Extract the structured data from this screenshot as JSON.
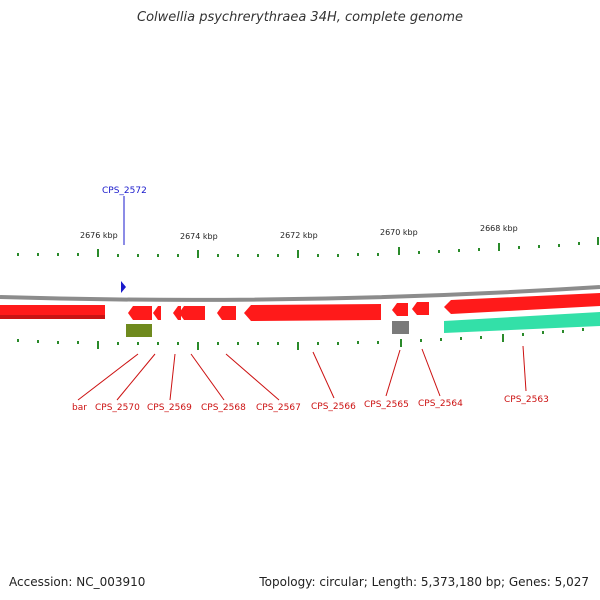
{
  "title": "Colwellia psychrerythraea 34H, complete genome",
  "footer": {
    "accession": "Accession: NC_003910",
    "info": "Topology: circular; Length: 5,373,180 bp; Genes: 5,027"
  },
  "colors": {
    "backbone": "#8c8c8c",
    "gene_forward_strand": "#ff1a1a",
    "ticks": "#2a8a2a",
    "label_red": "#cc1111",
    "label_blue": "#1a1acc",
    "gene_green": "#33e0a8",
    "gene_olive": "#6f8a1e",
    "gene_gray": "#7a7a7a"
  },
  "scale_labels": [
    "2676 kbp",
    "2674 kbp",
    "2672 kbp",
    "2670 kbp",
    "2668 kbp"
  ],
  "feature_labels": {
    "blue": [
      "CPS_2572"
    ],
    "red": [
      "bar",
      "CPS_2570",
      "CPS_2569",
      "CPS_2568",
      "CPS_2567",
      "CPS_2566",
      "CPS_2565",
      "CPS_2564",
      "CPS_2563"
    ]
  }
}
